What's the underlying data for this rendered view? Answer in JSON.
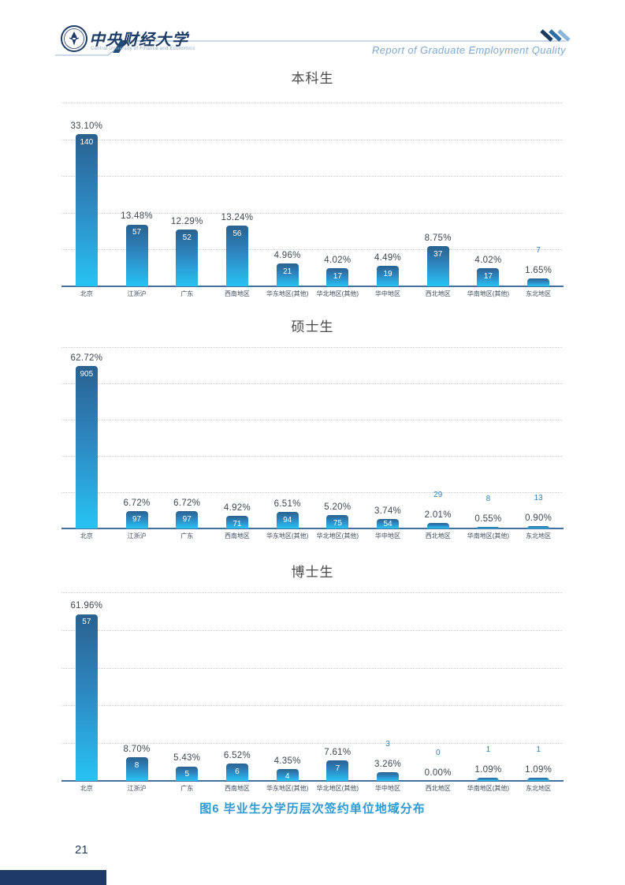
{
  "header": {
    "university_name_cn": "中央财经大学",
    "university_name_en": "Central University of Finance and Economics",
    "tagline": "Report of Graduate Employment Quality"
  },
  "chart_data": [
    {
      "type": "bar",
      "title": "本科生",
      "categories": [
        "北京",
        "江浙沪",
        "广东",
        "西南地区",
        "华东地区(其他)",
        "华北地区(其他)",
        "华中地区",
        "西北地区",
        "华南地区(其他)",
        "东北地区"
      ],
      "percents": [
        33.1,
        13.48,
        12.29,
        13.24,
        4.96,
        4.02,
        4.49,
        8.75,
        4.02,
        1.65
      ],
      "counts": [
        140,
        57,
        52,
        56,
        21,
        17,
        19,
        37,
        17,
        7
      ],
      "ylim": [
        0,
        40
      ],
      "grid": "horizontal-dotted",
      "legend": "none",
      "value_label_format": "two-decimal-percent-above-bar, count-inside-or-above-bar"
    },
    {
      "type": "bar",
      "title": "硕士生",
      "categories": [
        "北京",
        "江浙沪",
        "广东",
        "西南地区",
        "华东地区(其他)",
        "华北地区(其他)",
        "华中地区",
        "西北地区",
        "华南地区(其他)",
        "东北地区"
      ],
      "percents": [
        62.72,
        6.72,
        6.72,
        4.92,
        6.51,
        5.2,
        3.74,
        2.01,
        0.55,
        0.9
      ],
      "counts": [
        905,
        97,
        97,
        71,
        94,
        75,
        54,
        29,
        8,
        13
      ],
      "ylim": [
        0,
        70
      ],
      "grid": "horizontal-dotted",
      "legend": "none",
      "value_label_format": "two-decimal-percent-above-bar, count-inside-or-above-bar"
    },
    {
      "type": "bar",
      "title": "博士生",
      "categories": [
        "北京",
        "江浙沪",
        "广东",
        "西南地区",
        "华东地区(其他)",
        "华北地区(其他)",
        "华中地区",
        "西北地区",
        "华南地区(其他)",
        "东北地区"
      ],
      "percents": [
        61.96,
        8.7,
        5.43,
        6.52,
        4.35,
        7.61,
        3.26,
        0.0,
        1.09,
        1.09
      ],
      "counts": [
        57,
        8,
        5,
        6,
        4,
        7,
        3,
        0,
        1,
        1
      ],
      "ylim": [
        0,
        70
      ],
      "grid": "horizontal-dotted",
      "legend": "none",
      "value_label_format": "two-decimal-percent-above-bar, count-inside-or-above-bar"
    }
  ],
  "caption": "图6  毕业生分学历层次签约单位地域分布",
  "page_number": "21",
  "colors": {
    "bar_gradient_top": "#2a618f",
    "bar_gradient_bottom": "#27c3f3",
    "axis_line": "#44709d",
    "percent_label": "#3d4852",
    "count_label_above": "#2f7fbe",
    "count_label_inside": "#ffffff",
    "gridline": "#cccccc",
    "caption": "#2f9bd2",
    "navy": "#1e3a66",
    "header_line": "#a9c1d9",
    "tagline": "#7ea9cf"
  }
}
